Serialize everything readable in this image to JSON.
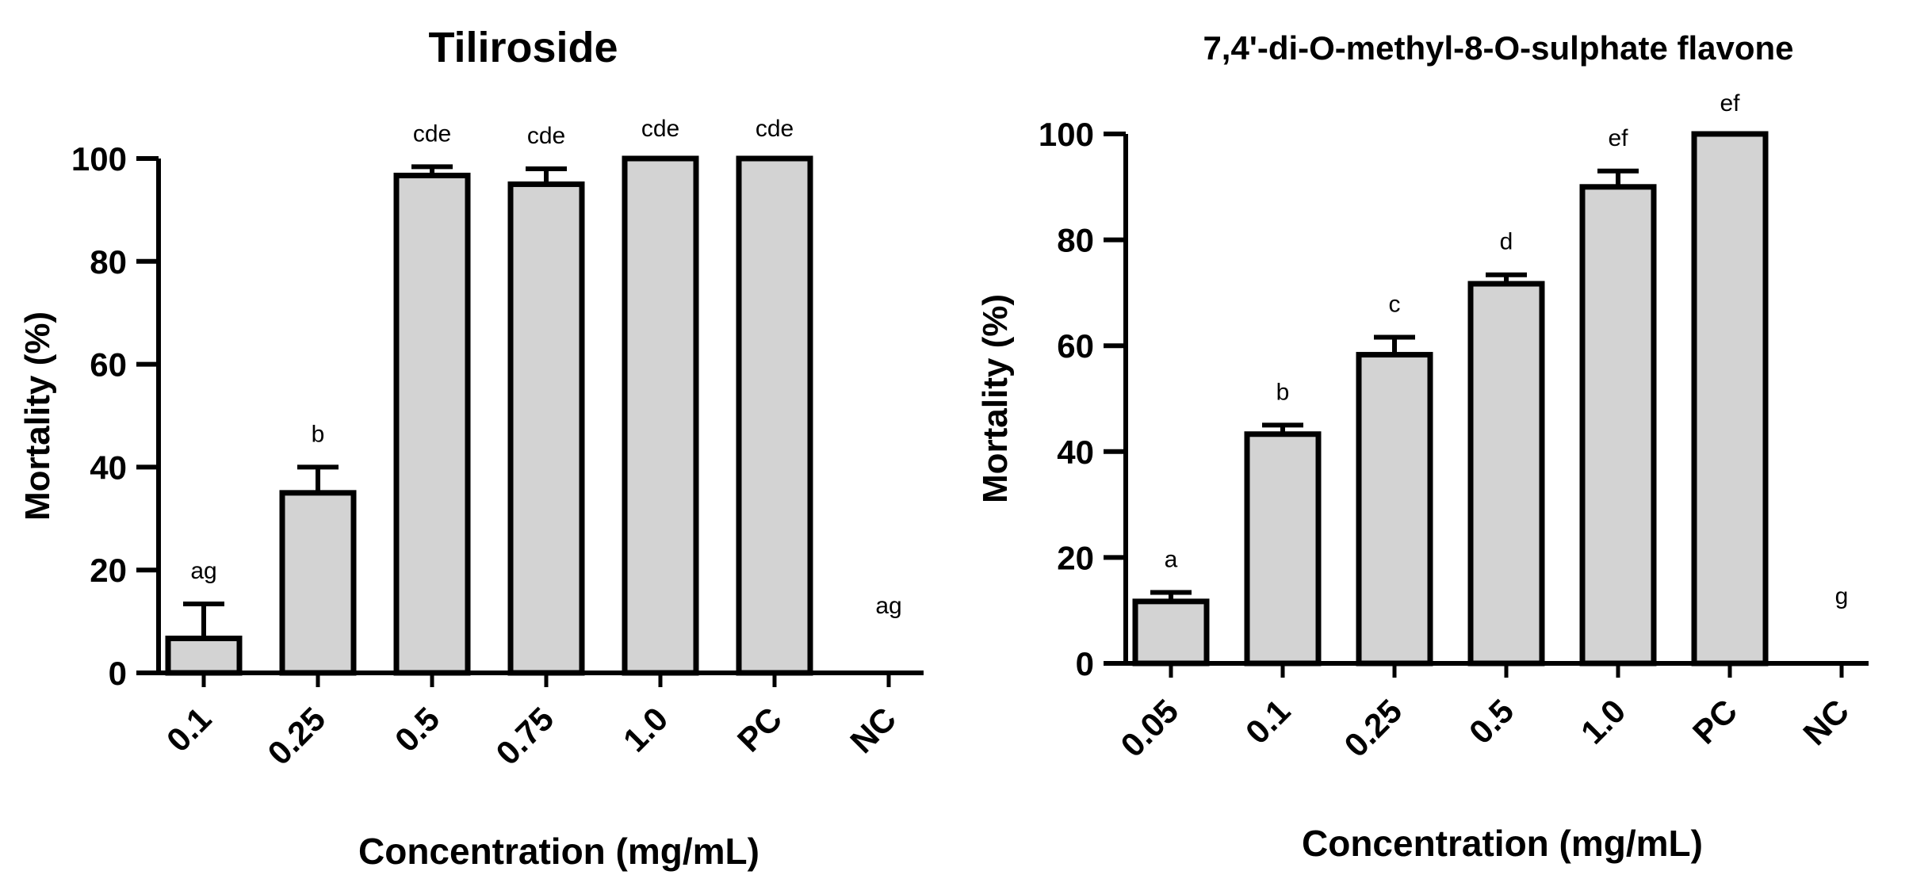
{
  "chart_data": [
    {
      "type": "bar",
      "title": "Tiliroside",
      "xlabel": "Concentration (mg/mL)",
      "ylabel": "Mortality (%)",
      "ylim": [
        0,
        100
      ],
      "yticks": [
        0,
        20,
        40,
        60,
        80,
        100
      ],
      "categories": [
        "0.1",
        "0.25",
        "0.5",
        "0.75",
        "1.0",
        "PC",
        "NC"
      ],
      "values": [
        6.7,
        35,
        96.7,
        95,
        100,
        100,
        0
      ],
      "errors": [
        6.7,
        5,
        1.7,
        3,
        0,
        0,
        0
      ],
      "annotations": [
        "ag",
        "b",
        "cde",
        "cde",
        "cde",
        "cde",
        "ag"
      ],
      "bar_color": "#d3d3d3"
    },
    {
      "type": "bar",
      "title": "7,4'-di-O-methyl-8-O-sulphate flavone",
      "xlabel": "Concentration (mg/mL)",
      "ylabel": "Mortality (%)",
      "ylim": [
        0,
        100
      ],
      "yticks": [
        0,
        20,
        40,
        60,
        80,
        100
      ],
      "categories": [
        "0.05",
        "0.1",
        "0.25",
        "0.5",
        "1.0",
        "PC",
        "NC"
      ],
      "values": [
        11.7,
        43.3,
        58.3,
        71.7,
        90,
        100,
        0
      ],
      "errors": [
        1.7,
        1.7,
        3.3,
        1.7,
        3,
        0,
        0
      ],
      "annotations": [
        "a",
        "b",
        "c",
        "d",
        "ef",
        "ef",
        "g"
      ],
      "bar_color": "#d3d3d3"
    }
  ]
}
